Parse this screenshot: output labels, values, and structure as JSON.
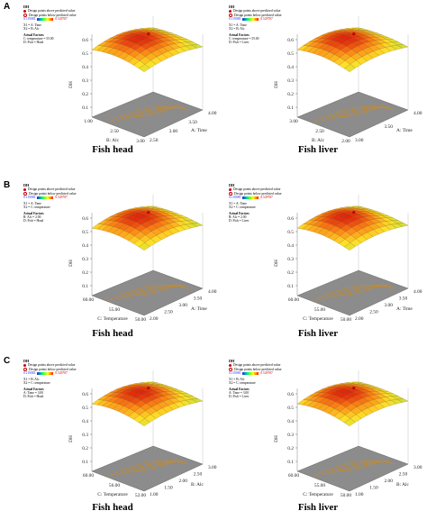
{
  "colors": {
    "low": "#1a30ff",
    "high": "#d40000"
  },
  "rows": [
    {
      "letter": "A",
      "panels": [
        {
          "title": "DH",
          "above": "Design points above predicted value",
          "below": "Design points below predicted value",
          "low": "0.119083",
          "high": "0.529787",
          "x1": "X1 = A: Time",
          "x2": "X2 = B: Alc",
          "factors_title": "Actual Factors",
          "f1": "C: temperature = 55.00",
          "f2": "D: Fish = Head",
          "ylabel": "DH",
          "zticks": [
            "0.6",
            "0.5",
            "0.4",
            "0.3",
            "0.2",
            "0.1"
          ],
          "xaxis": "B: Alc",
          "xticks": [
            "1.00",
            "2.50",
            "3.00"
          ],
          "yaxis": "A: Time",
          "yticks": [
            "4.00",
            "3.50",
            "3.00",
            "2.50"
          ],
          "caption": "Fish head"
        },
        {
          "title": "DH",
          "above": "Design points above predicted value",
          "below": "Design points below predicted value",
          "low": "0.119083",
          "high": "0.529787",
          "x1": "X1 = A: Time",
          "x2": "X2 = B: Alc",
          "factors_title": "Actual Factors",
          "f1": "C: temperature = 55.00",
          "f2": "D: Fish = Liver",
          "ylabel": "DH",
          "zticks": [
            "0.6",
            "0.5",
            "0.4",
            "0.3",
            "0.2",
            "0.1"
          ],
          "xaxis": "B: Alc",
          "xticks": [
            "3.00",
            "2.50",
            "2.00"
          ],
          "yaxis": "A: Time",
          "yticks": [
            "4.00",
            "3.50",
            "3.00"
          ],
          "caption": "Fish liver"
        }
      ]
    },
    {
      "letter": "B",
      "panels": [
        {
          "title": "DH",
          "above": "Design points above predicted value",
          "below": "Design points below predicted value",
          "low": "0.119083",
          "high": "0.529787",
          "x1": "X1 = A: Time",
          "x2": "X2 = C: temperature",
          "factors_title": "Actual Factors",
          "f1": "B: Alc = 2.00",
          "f2": "D: Fish = Head",
          "ylabel": "DH",
          "zticks": [
            "0.6",
            "0.5",
            "0.4",
            "0.3",
            "0.2",
            "0.1"
          ],
          "xaxis": "C: Temperature",
          "xticks": [
            "60.00",
            "55.00",
            "50.00"
          ],
          "yaxis": "A: Time",
          "yticks": [
            "4.00",
            "3.50",
            "3.00",
            "2.50",
            "2.00"
          ],
          "caption": "Fish head"
        },
        {
          "title": "DH",
          "above": "Design points above predicted value",
          "below": "Design points below predicted value",
          "low": "0.119083",
          "high": "0.529787",
          "x1": "X1 = A: Time",
          "x2": "X2 = C: temperature",
          "factors_title": "Actual Factors",
          "f1": "B: Alc = 2.00",
          "f2": "D: Fish = Liver",
          "ylabel": "DH",
          "zticks": [
            "0.6",
            "0.5",
            "0.4",
            "0.3",
            "0.2",
            "0.1"
          ],
          "xaxis": "C: Temperature",
          "xticks": [
            "60.00",
            "55.00",
            "50.00"
          ],
          "yaxis": "A: Time",
          "yticks": [
            "4.00",
            "3.50",
            "3.00",
            "2.50",
            "2.00"
          ],
          "caption": "Fish liver"
        }
      ]
    },
    {
      "letter": "C",
      "panels": [
        {
          "title": "DH",
          "above": "Design points above predicted value",
          "below": "Design points below predicted value",
          "low": "0.119083",
          "high": "0.529787",
          "x1": "X1 = B: Alc",
          "x2": "X2 = C: temperature",
          "factors_title": "Actual Factors",
          "f1": "A: Time = 3.00",
          "f2": "D: Fish = Head",
          "ylabel": "DH",
          "zticks": [
            "0.6",
            "0.5",
            "0.4",
            "0.3",
            "0.2",
            "0.1"
          ],
          "xaxis": "C: Temperature",
          "xticks": [
            "60.00",
            "56.00",
            "52.00"
          ],
          "yaxis": "B: Alc",
          "yticks": [
            "3.00",
            "2.50",
            "2.00",
            "1.50",
            "1.00"
          ],
          "caption": "Fish head"
        },
        {
          "title": "DH",
          "above": "Design points above predicted value",
          "below": "Design points below predicted value",
          "low": "0.119083",
          "high": "0.529787",
          "x1": "X1 = B: Alc",
          "x2": "X2 = C: temperature",
          "factors_title": "Actual Factors",
          "f1": "A: Time = 3.00",
          "f2": "D: Fish = Liver",
          "ylabel": "DH",
          "zticks": [
            "0.6",
            "0.5",
            "0.4",
            "0.3",
            "0.2",
            "0.1"
          ],
          "xaxis": "C: Temperature",
          "xticks": [
            "60.00",
            "55.00",
            "50.00"
          ],
          "yaxis": "B: Alc",
          "yticks": [
            "3.00",
            "2.50",
            "2.00",
            "1.50",
            "1.00"
          ],
          "caption": "Fish liver"
        }
      ]
    }
  ]
}
